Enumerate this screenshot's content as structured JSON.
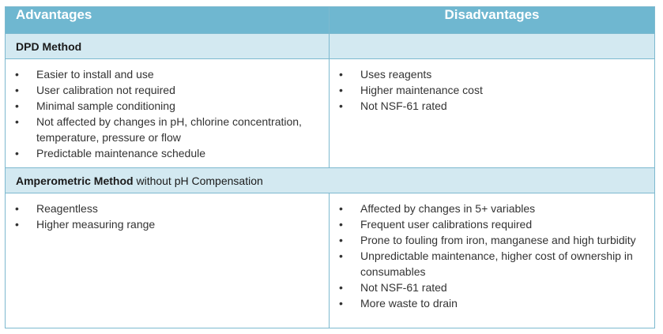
{
  "header": {
    "advantages": "Advantages",
    "disadvantages": "Disadvantages"
  },
  "sections": [
    {
      "title_bold": "DPD Method",
      "title_rest": "",
      "advantages": [
        "Easier to install and use",
        "User calibration not required",
        "Minimal sample conditioning",
        "Not affected by changes in pH, chlorine concentration, temperature, pressure or flow",
        "Predictable maintenance schedule"
      ],
      "disadvantages": [
        "Uses reagents",
        "Higher maintenance cost",
        "Not NSF-61 rated"
      ]
    },
    {
      "title_bold": "Amperometric Method",
      "title_rest": " without pH Compensation",
      "advantages": [
        "Reagentless",
        "Higher measuring range"
      ],
      "disadvantages": [
        "Affected by changes in 5+ variables",
        "Frequent user calibrations required",
        "Prone to fouling from iron, manganese and high turbidity",
        "Unpredictable maintenance, higher cost of ownership in consumables",
        "Not NSF-61 rated",
        "More waste to drain"
      ]
    }
  ]
}
